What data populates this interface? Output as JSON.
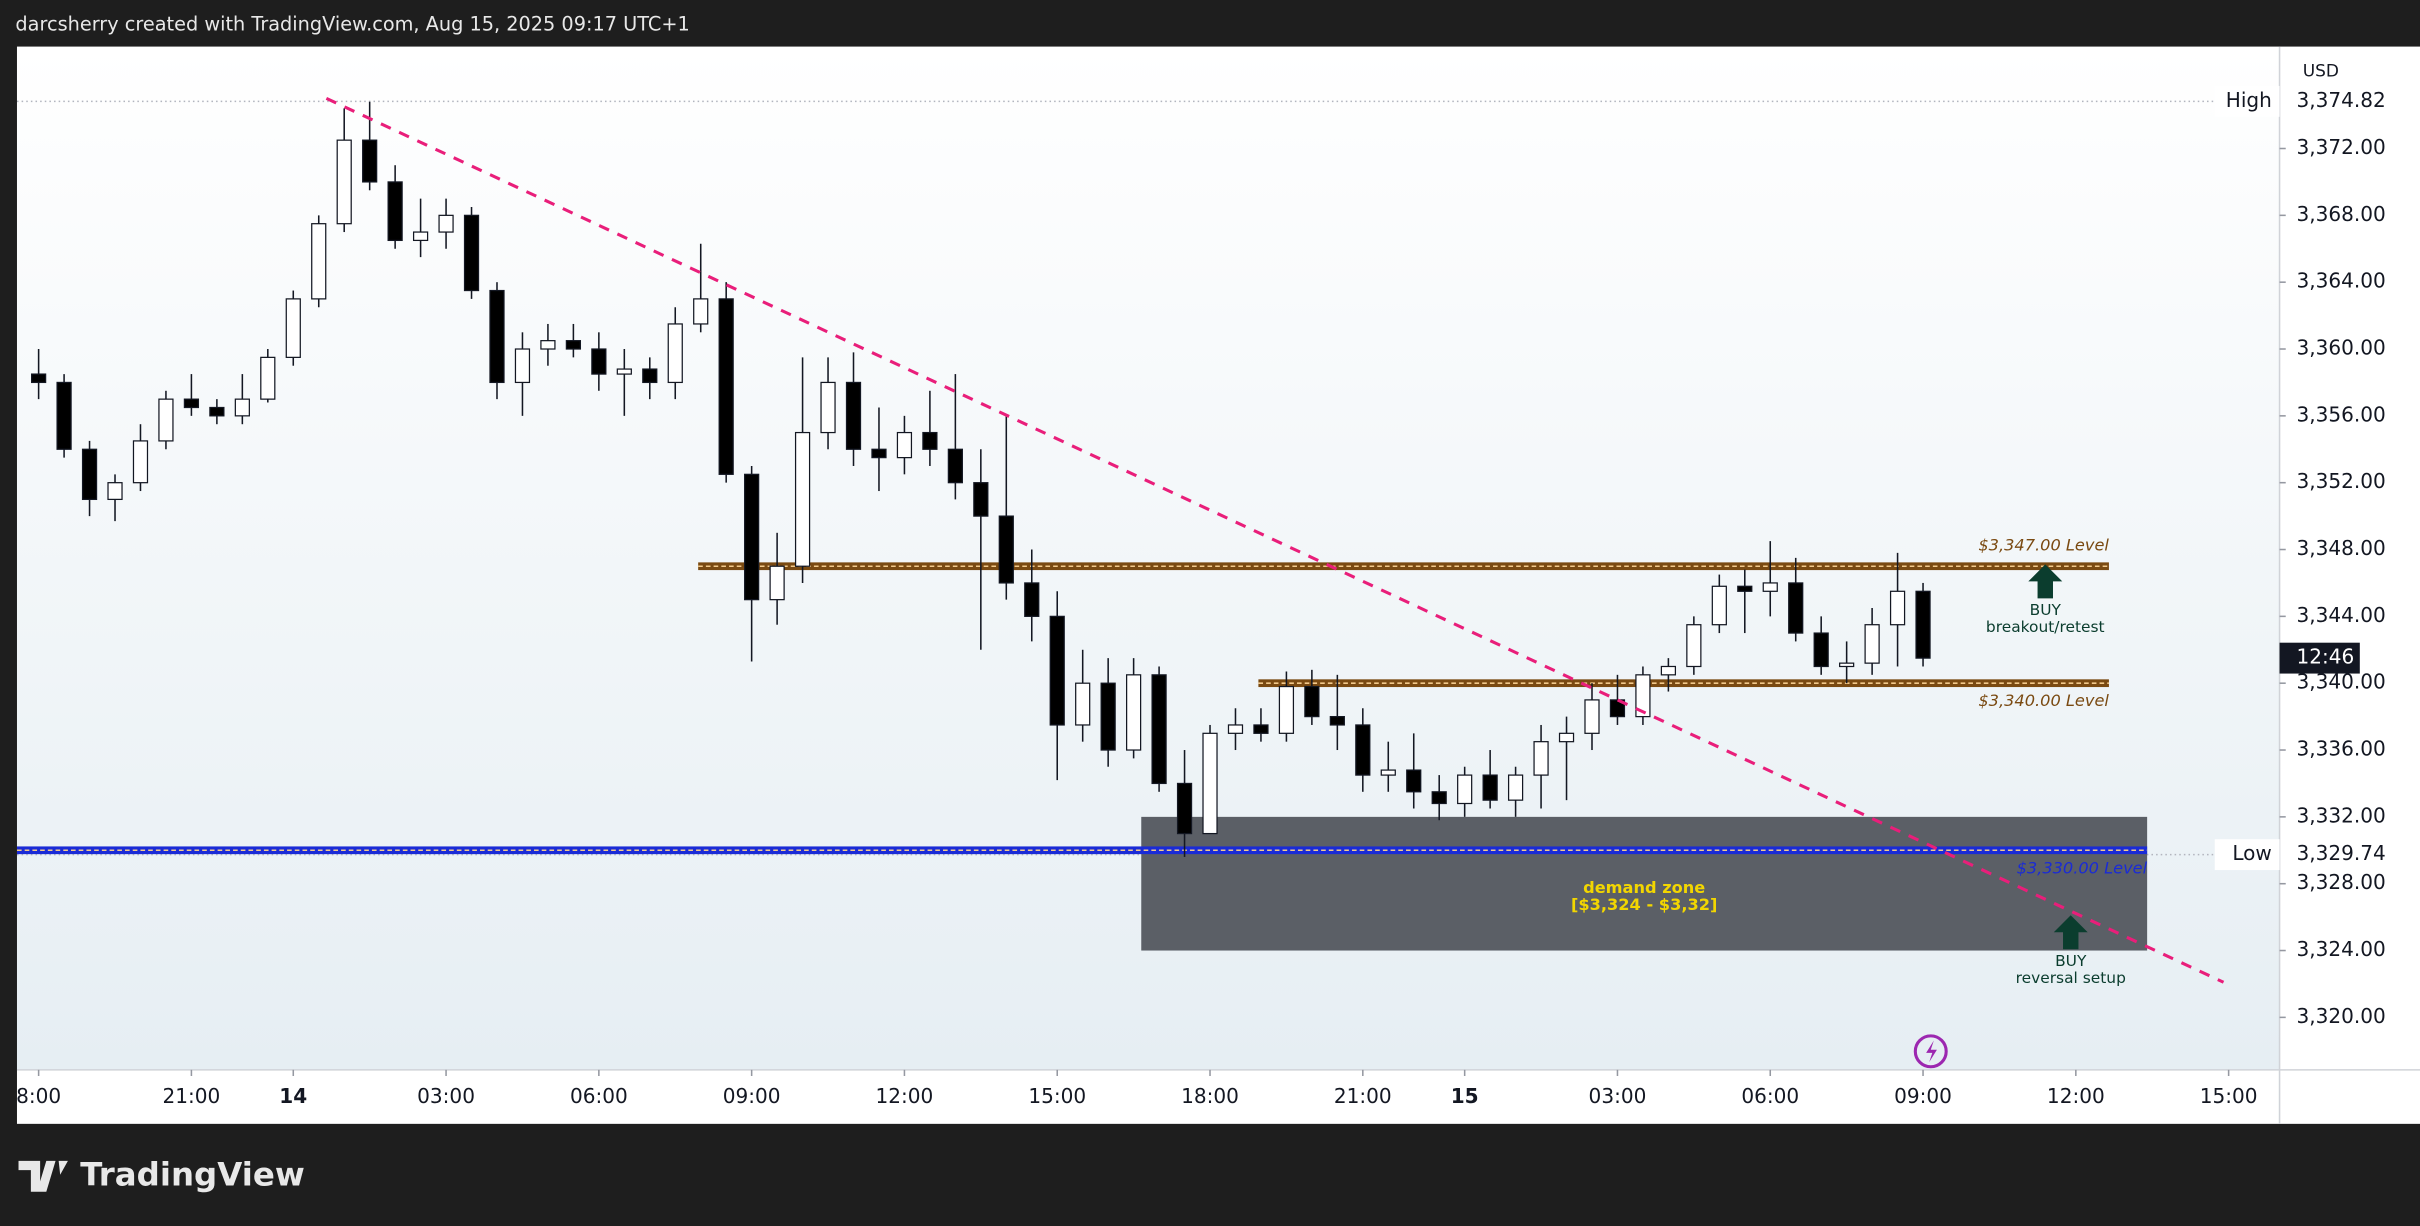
{
  "header": {
    "text": "darcsherry created with TradingView.com, Aug 15, 2025 09:17 UTC+1"
  },
  "footer": {
    "logo": "TradingView"
  },
  "chart_data": {
    "type": "candlestick",
    "currency": "USD",
    "up_color": "#ffffff",
    "down_color": "#000000",
    "xlim": [
      -0.85,
      88
    ],
    "ylim": [
      3316.86,
      3378.1
    ],
    "xticks": [
      {
        "value": 0,
        "label": "8:00"
      },
      {
        "value": 6,
        "label": "21:00"
      },
      {
        "value": 10,
        "label": "14"
      },
      {
        "value": 16,
        "label": "03:00"
      },
      {
        "value": 22,
        "label": "06:00"
      },
      {
        "value": 28,
        "label": "09:00"
      },
      {
        "value": 34,
        "label": "12:00"
      },
      {
        "value": 40,
        "label": "15:00"
      },
      {
        "value": 46,
        "label": "18:00"
      },
      {
        "value": 52,
        "label": "21:00"
      },
      {
        "value": 56,
        "label": "15"
      },
      {
        "value": 62,
        "label": "03:00"
      },
      {
        "value": 68,
        "label": "06:00"
      },
      {
        "value": 74,
        "label": "09:00"
      },
      {
        "value": 80,
        "label": "12:00"
      },
      {
        "value": 86,
        "label": "15:00"
      }
    ],
    "yticks": [
      {
        "value": 3320,
        "label": "3,320.00"
      },
      {
        "value": 3324,
        "label": "3,324.00"
      },
      {
        "value": 3328,
        "label": "3,328.00"
      },
      {
        "value": 3332,
        "label": "3,332.00"
      },
      {
        "value": 3336,
        "label": "3,336.00"
      },
      {
        "value": 3340,
        "label": "3,340.00"
      },
      {
        "value": 3344,
        "label": "3,344.00"
      },
      {
        "value": 3348,
        "label": "3,348.00"
      },
      {
        "value": 3352,
        "label": "3,352.00"
      },
      {
        "value": 3356,
        "label": "3,356.00"
      },
      {
        "value": 3360,
        "label": "3,360.00"
      },
      {
        "value": 3364,
        "label": "3,364.00"
      },
      {
        "value": 3368,
        "label": "3,368.00"
      },
      {
        "value": 3372,
        "label": "3,372.00"
      }
    ],
    "open": [
      3358.5,
      3358,
      3354,
      3351,
      3352,
      3354.5,
      3357,
      3356.5,
      3356,
      3357,
      3359.5,
      3363,
      3367.5,
      3372.5,
      3370,
      3366.5,
      3367,
      3368,
      3363.5,
      3358,
      3360,
      3360.5,
      3360,
      3358.5,
      3358.8,
      3358,
      3361.5,
      3363,
      3352.5,
      3345,
      3347,
      3355,
      3358,
      3354,
      3353.5,
      3355,
      3354,
      3352,
      3350,
      3346,
      3344,
      3337.5,
      3340,
      3336,
      3340.5,
      3334,
      3331,
      3337,
      3337.5,
      3337,
      3339.8,
      3338,
      3337.5,
      3334.5,
      3334.8,
      3333.5,
      3332.8,
      3334.5,
      3333,
      3334.5,
      3336.5,
      3337,
      3339,
      3338,
      3340.5,
      3341,
      3343.5,
      3345.8,
      3345.5,
      3346,
      3343,
      3341,
      3341.2,
      3343.5,
      3345.5
    ],
    "high": [
      3360,
      3358.5,
      3354.5,
      3352.5,
      3355.5,
      3357.5,
      3358.5,
      3357,
      3358.5,
      3360,
      3363.5,
      3368,
      3374.4,
      3374.8,
      3371,
      3369,
      3369,
      3368.5,
      3364,
      3361,
      3361.5,
      3361.5,
      3361,
      3360,
      3359.5,
      3362.5,
      3366.3,
      3364,
      3353,
      3349,
      3359.5,
      3359.5,
      3359.8,
      3356.5,
      3356,
      3357.5,
      3358.5,
      3354,
      3356,
      3348,
      3345.5,
      3342,
      3341.5,
      3341.5,
      3341,
      3336,
      3337.5,
      3338.5,
      3338.5,
      3340.7,
      3340.8,
      3340.5,
      3338.5,
      3336.5,
      3337,
      3334.5,
      3335,
      3336,
      3335,
      3337.5,
      3338,
      3340,
      3340.5,
      3341,
      3341.5,
      3344,
      3346.5,
      3346.8,
      3348.5,
      3347.5,
      3344,
      3342.5,
      3344.5,
      3347.8,
      3346
    ],
    "low": [
      3357,
      3353.5,
      3350,
      3349.7,
      3351.5,
      3354,
      3356,
      3355.5,
      3355.5,
      3356.8,
      3359,
      3362.5,
      3367,
      3369.5,
      3366,
      3365.5,
      3366,
      3363,
      3357,
      3356,
      3359,
      3359.5,
      3357.5,
      3356,
      3357,
      3357,
      3361,
      3352,
      3341.3,
      3343.5,
      3346,
      3354,
      3353,
      3351.5,
      3352.5,
      3353,
      3351,
      3342,
      3345,
      3342.5,
      3334.2,
      3336.5,
      3335,
      3335.5,
      3333.5,
      3329.6,
      3331,
      3336,
      3336.5,
      3336.5,
      3337.5,
      3336,
      3333.5,
      3333.5,
      3332.5,
      3331.8,
      3332,
      3332.5,
      3332,
      3332.5,
      3333,
      3336,
      3337.5,
      3337.5,
      3339.5,
      3340.5,
      3343,
      3343,
      3344,
      3342.5,
      3340.5,
      3340,
      3340.5,
      3341,
      3341
    ],
    "close": [
      3358,
      3354,
      3351,
      3352,
      3354.5,
      3357,
      3356.5,
      3356,
      3357,
      3359.5,
      3363,
      3367.5,
      3372.5,
      3370,
      3366.5,
      3367,
      3368,
      3363.5,
      3358,
      3360,
      3360.5,
      3360,
      3358.5,
      3358.8,
      3358,
      3361.5,
      3363,
      3352.5,
      3345,
      3347,
      3355,
      3358,
      3354,
      3353.5,
      3355,
      3354,
      3352,
      3350,
      3346,
      3344,
      3337.5,
      3340,
      3336,
      3340.5,
      3334,
      3331,
      3337,
      3337.5,
      3337,
      3339.8,
      3338,
      3337.5,
      3334.5,
      3334.8,
      3333.5,
      3332.8,
      3334.5,
      3333,
      3334.5,
      3336.5,
      3337,
      3339,
      3338,
      3340.5,
      3341,
      3343.5,
      3345.8,
      3345.5,
      3346,
      3343,
      3341,
      3341.2,
      3343.5,
      3345.5,
      3341.5
    ],
    "high_marker": {
      "label": "High",
      "value": 3374.82,
      "value_label": "3,374.82"
    },
    "low_marker": {
      "label": "Low",
      "value": 3329.74,
      "value_label": "3,329.74"
    },
    "countdown": "12:46",
    "levels": [
      {
        "price": 3347,
        "label": "$3,347.00 Level",
        "color": "#7a4a12",
        "from": 25.9,
        "to": 81.3
      },
      {
        "price": 3340,
        "label": "$3,340.00 Level",
        "color": "#7a4a12",
        "from": 47.9,
        "to": 81.3
      },
      {
        "price": 3330,
        "label": "$3,330.00 Level",
        "color": "#1a2bd6",
        "from": -0.85,
        "to": 82.8
      }
    ],
    "zone": {
      "label": "demand zone",
      "sublabel": "[$3,324 - $3,32]",
      "low": 3324,
      "high": 3332,
      "from": 43.3,
      "to": 82.8,
      "color": "#5b5f66"
    },
    "trendline": {
      "x": [
        11.3,
        85.8
      ],
      "y": [
        3375.0,
        3322.1
      ],
      "color": "#e91e7a"
    },
    "signals": [
      {
        "title": "BUY",
        "text": "breakout/retest",
        "x": 78.8,
        "price": 3346
      },
      {
        "title": "BUY",
        "text": "reversal setup",
        "x": 79.8,
        "price": 3325
      }
    ]
  }
}
